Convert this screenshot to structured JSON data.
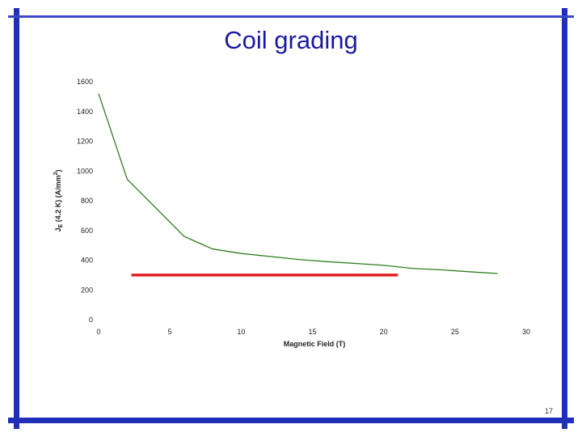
{
  "slide": {
    "title": "Coil grading",
    "page_number": "17",
    "frame_color": "#1f2fb8"
  },
  "chart_data": {
    "type": "line",
    "title": "",
    "xlabel": "Magnetic Field (T)",
    "ylabel_main": "J",
    "ylabel_sub": "E",
    "ylabel_rest": " (4.2 K) (A/mm",
    "ylabel_sup": "2",
    "ylabel_end": ")",
    "xlim": [
      0,
      30
    ],
    "ylim": [
      0,
      1600
    ],
    "x_ticks": [
      "0",
      "5",
      "10",
      "15",
      "20",
      "25",
      "30"
    ],
    "y_ticks": [
      "0",
      "200",
      "400",
      "600",
      "800",
      "1000",
      "1200",
      "1400",
      "1600"
    ],
    "grid": false,
    "legend": "none",
    "series": [
      {
        "color": "#2e7d1f",
        "x": [
          0,
          2,
          6,
          8,
          10,
          12,
          14,
          16,
          18,
          20,
          22,
          24,
          26,
          28
        ],
        "y": [
          1520,
          945,
          560,
          475,
          445,
          425,
          405,
          390,
          378,
          365,
          345,
          335,
          322,
          310
        ]
      },
      {
        "color": "#e02020",
        "x": [
          2.3,
          21
        ],
        "y": [
          300,
          300
        ]
      }
    ]
  }
}
